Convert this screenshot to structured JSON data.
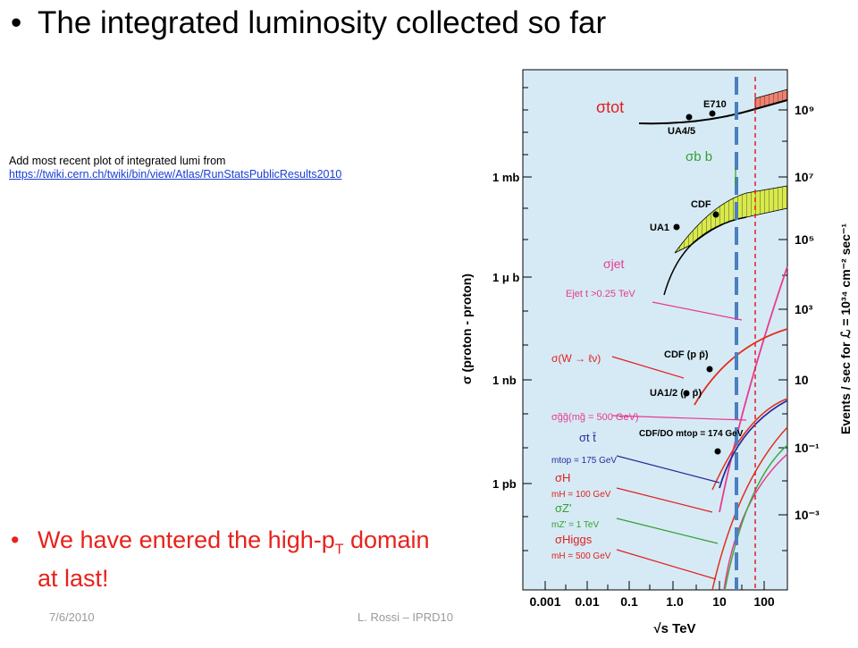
{
  "slide": {
    "title_bullet": "•",
    "title": "The integrated luminosity collected so far",
    "note_line1": "Add most  recent plot of integrated lumi from",
    "note_link": "https://twiki.cern.ch/twiki/bin/view/Atlas/RunStatsPublicResults2010",
    "bullet2_dot": "•",
    "bullet2_line1_pre": "We have entered the high-p",
    "bullet2_line1_sub": "T",
    "bullet2_line1_post": " domain",
    "bullet2_line2": "at last!",
    "footer_date": "7/6/2010",
    "footer_author": "L. Rossi  – IPRD10",
    "accent_red": "#e8221c"
  },
  "chart_data": {
    "type": "line",
    "x_axis": {
      "label": "√s   TeV",
      "scale": "log",
      "ticks": [
        "0.001",
        "0.01",
        "0.1",
        "1.0",
        "10",
        "100"
      ]
    },
    "y_axis_left": {
      "label": "σ  (proton - proton)",
      "ticks": [
        "1 mb",
        "1 μ b",
        "1 nb",
        "1 pb"
      ]
    },
    "y_axis_right": {
      "label": "Events / sec for ℒ = 10³⁴ cm⁻² sec⁻¹",
      "ticks": [
        "10⁹",
        "10⁷",
        "10⁵",
        "10³",
        "10",
        "10⁻¹",
        "10⁻³"
      ]
    },
    "background": "#d6eaf5",
    "curve_labels": {
      "tot": "σtot",
      "bb": "σb b",
      "jet1": "σjet",
      "jet2": "Ejet t >0.25 TeV",
      "w": "σ(W → ℓν)",
      "gg": "σg̃g̃(mg̃ = 500 GeV)",
      "tt": "σt t̄",
      "tt_m": "mtop = 175 GeV",
      "h": "σH",
      "h_m": "mH = 100 GeV",
      "z": "σZ'",
      "z_m": "mZ' = 1 TeV",
      "higgs": "σHiggs",
      "higgs_m": "mH = 500 GeV"
    },
    "data_points": [
      {
        "label": "E710"
      },
      {
        "label": "UA4/5"
      },
      {
        "label": "CDF"
      },
      {
        "label": "UA1"
      },
      {
        "label": "CDF (p p̄)"
      },
      {
        "label": "UA1/2 (p p̄)"
      },
      {
        "label": "CDF/DO mtop = 174 GeV"
      }
    ],
    "reference_lines": [
      {
        "energy_TeV": 7,
        "style": "dashed",
        "color": "#4a7fc0"
      },
      {
        "energy_TeV": 14,
        "style": "dashed",
        "color": "#e02020"
      }
    ]
  }
}
